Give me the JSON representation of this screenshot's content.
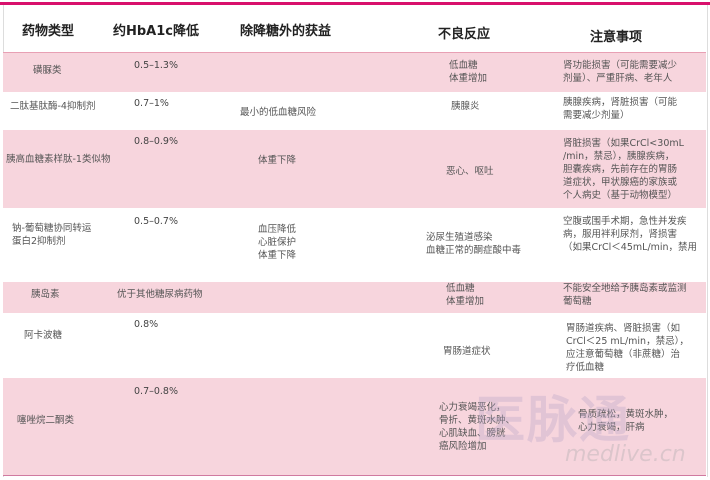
{
  "header": {
    "columns": [
      "药物类型",
      "约HbA1c降低",
      "除降糖外的获益",
      "不良反应",
      "注意事项"
    ]
  },
  "rows": [
    {
      "drug": "磺脲类",
      "hba1c": "0.5–1.3%",
      "benefit": "",
      "adverse": "低血糖\n体重增加",
      "caution": "肾功能损害（可能需要减少\n剂量）、严重肝病、老年人"
    },
    {
      "drug": "二肽基肽酶-4抑制剂",
      "hba1c": "0.7–1%",
      "benefit": "最小的低血糖风险",
      "adverse": "胰腺炎",
      "caution": "胰腺疾病，肾脏损害（可能\n需要减少剂量）"
    },
    {
      "drug": "胰高血糖素样肽-1类似物",
      "hba1c": "0.8–0.9%",
      "benefit": "体重下降",
      "adverse": "恶心、呕吐",
      "caution": "肾脏损害（如果CrCl<30mL\n/min，禁忌），胰腺疾病，\n胆囊疾病，先前存在的胃肠\n道症状，甲状腺癌的家族或\n个人病史（基于动物模型）"
    },
    {
      "drug": "钠-葡萄糖协同转运\n蛋白2抑制剂",
      "hba1c": "0.5–0.7%",
      "benefit": "血压降低\n心脏保护\n体重下降",
      "adverse": "泌尿生殖道感染\n血糖正常的酮症酸中毒",
      "caution": "空腹或围手术期，急性并发疾\n病，服用袢利尿剂，肾损害\n（如果CrCl＜45mL/min，禁用"
    },
    {
      "drug": "胰岛素",
      "hba1c": "优于其他糖尿病药物",
      "benefit": "",
      "adverse": "低血糖\n体重增加",
      "caution": "不能安全地给予胰岛素或监测\n葡萄糖"
    },
    {
      "drug": "阿卡波糖",
      "hba1c": "0.8%",
      "benefit": "",
      "adverse": "胃肠道症状",
      "caution": "胃肠道疾病、肾脏损害（如\nCrCl＜25 mL/min，禁忌），\n应注意葡萄糖（非蔗糖）治\n疗低血糖"
    },
    {
      "drug": "噻唑烷二酮类",
      "hba1c": "0.7–0.8%",
      "benefit": "",
      "adverse": "心力衰竭恶化，\n骨折、黄斑水肿、\n心肌缺血、膀胱\n癌风险增加",
      "caution": "骨质疏松，黄斑水肿，\n心力衰竭，肝病"
    }
  ],
  "watermark": {
    "logo": "医脉通",
    "text": "medlive.cn"
  },
  "colors": {
    "accent": "#d8106c",
    "row_pink": "#f7d5dd",
    "row_white": "#ffffff"
  }
}
